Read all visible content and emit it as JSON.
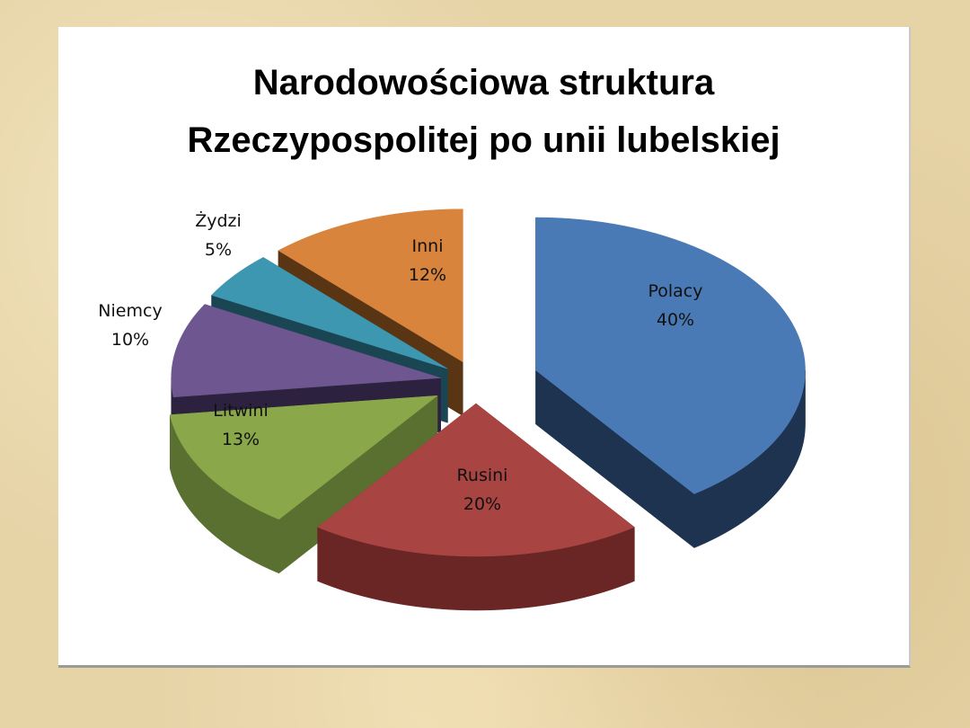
{
  "chart_data": {
    "type": "pie",
    "style": "3d-exploded",
    "title": [
      "Narodowościowa struktura",
      "Rzeczypospolitej po unii lubelskiej"
    ],
    "categories": [
      "Polacy",
      "Rusini",
      "Litwini",
      "Niemcy",
      "Żydzi",
      "Inni"
    ],
    "values": [
      40,
      20,
      13,
      10,
      5,
      12
    ],
    "value_labels": [
      "40%",
      "20%",
      "13%",
      "10%",
      "5%",
      "12%"
    ],
    "colors": [
      "#4a7ab5",
      "#a84442",
      "#8aa84a",
      "#6e5690",
      "#3e97b0",
      "#d9843c"
    ],
    "side_colors": [
      "#1d3350",
      "#6a2624",
      "#5a7030",
      "#2c2240",
      "#1a4654",
      "#5a3514"
    ],
    "legend": "none"
  }
}
